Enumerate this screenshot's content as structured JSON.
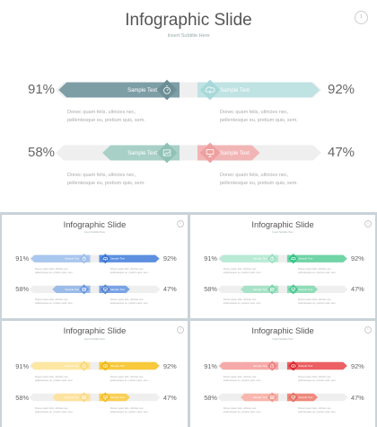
{
  "slides": [
    {
      "title": "Infographic Slide",
      "subtitle": "Insert Subtitle Here",
      "page_number": "1",
      "colors": {
        "left_top": "#7e9ea6",
        "right_top": "#bfe2e3",
        "left_bottom": "#a8d0c6",
        "right_bottom": "#f2b5b5",
        "diamond_left_top": "#6d8e96",
        "diamond_right_top": "#a7d8da",
        "diamond_left_bottom": "#8fc2b5",
        "diamond_right_bottom": "#ee9f9f",
        "track": "#efefef"
      },
      "rows": [
        {
          "left_pct": "91%",
          "right_pct": "92%",
          "left_label": "Sample Text",
          "right_label": "Sample Text",
          "left_icon": "timer-icon",
          "right_icon": "cloud-icon",
          "left_value": 91,
          "right_value": 92
        },
        {
          "left_pct": "58%",
          "right_pct": "47%",
          "left_label": "Sample Text",
          "right_label": "Sample Text",
          "left_icon": "image-icon",
          "right_icon": "presentation-icon",
          "left_value": 58,
          "right_value": 47
        }
      ],
      "descriptions": [
        "Donec quam felis, ultricies nec,\npellentesque eu, pretium quis, sem.",
        "Donec quam felis, ultricies nec,\npellentesque eu, pretium quis, sem.",
        "Donec quam felis, ultricies nec,\npellentesque eu, pretium quis, sem.",
        "Donec quam felis, ultricies nec,\npellentesque eu, pretium quis, sem."
      ]
    },
    {
      "title": "Infographic Slide",
      "subtitle": "Insert Subtitle Here",
      "page_number": "1",
      "colors": {
        "left_top": "#a9c7ee",
        "right_top": "#5c8fe0",
        "left_bottom": "#9bbbe8",
        "right_bottom": "#7aa3e6",
        "diamond_left_top": "#9dbde9",
        "diamond_right_top": "#3f78d6",
        "diamond_left_bottom": "#6f9ade",
        "diamond_right_bottom": "#5b86cf",
        "track": "#efefef"
      },
      "rows": [
        {
          "left_pct": "91%",
          "right_pct": "92%",
          "left_label": "Sample Text",
          "right_label": "Sample Text",
          "left_icon": "timer-icon",
          "right_icon": "cloud-icon",
          "left_value": 91,
          "right_value": 92
        },
        {
          "left_pct": "58%",
          "right_pct": "47%",
          "left_label": "Sample Text",
          "right_label": "Sample Text",
          "left_icon": "image-icon",
          "right_icon": "presentation-icon",
          "left_value": 58,
          "right_value": 47
        }
      ],
      "descriptions": [
        "Donec quam felis, ultricies nec,\npellentesque eu, pretium quis, sem.",
        "Donec quam felis, ultricies nec,\npellentesque eu, pretium quis, sem.",
        "Donec quam felis, ultricies nec,\npellentesque eu, pretium quis, sem.",
        "Donec quam felis, ultricies nec,\npellentesque eu, pretium quis, sem."
      ]
    },
    {
      "title": "Infographic Slide",
      "subtitle": "Insert Subtitle Here",
      "page_number": "1",
      "colors": {
        "left_top": "#b9ead5",
        "right_top": "#6fd4a6",
        "left_bottom": "#a8e2c8",
        "right_bottom": "#8fdcb8",
        "diamond_left_top": "#9ee0c2",
        "diamond_right_top": "#35c486",
        "diamond_left_bottom": "#7fd6ae",
        "diamond_right_bottom": "#4fc793",
        "track": "#efefef"
      },
      "rows": [
        {
          "left_pct": "91%",
          "right_pct": "92%",
          "left_label": "Sample Text",
          "right_label": "Sample Text",
          "left_icon": "timer-icon",
          "right_icon": "cloud-icon",
          "left_value": 91,
          "right_value": 92
        },
        {
          "left_pct": "58%",
          "right_pct": "47%",
          "left_label": "Sample Text",
          "right_label": "Sample Text",
          "left_icon": "image-icon",
          "right_icon": "presentation-icon",
          "left_value": 58,
          "right_value": 47
        }
      ],
      "descriptions": [
        "Donec quam felis, ultricies nec,\npellentesque eu, pretium quis, sem.",
        "Donec quam felis, ultricies nec,\npellentesque eu, pretium quis, sem.",
        "Donec quam felis, ultricies nec,\npellentesque eu, pretium quis, sem.",
        "Donec quam felis, ultricies nec,\npellentesque eu, pretium quis, sem."
      ]
    },
    {
      "title": "Infographic Slide",
      "subtitle": "Insert Subtitle Here",
      "page_number": "1",
      "colors": {
        "left_top": "#fde7a3",
        "right_top": "#f7c93b",
        "left_bottom": "#fde3a0",
        "right_bottom": "#f9cf55",
        "diamond_left_top": "#f9d979",
        "diamond_right_top": "#f0b917",
        "diamond_left_bottom": "#fbd98a",
        "diamond_right_bottom": "#f3bd2d",
        "track": "#efefef"
      },
      "rows": [
        {
          "left_pct": "91%",
          "right_pct": "92%",
          "left_label": "Sample Text",
          "right_label": "Sample Text",
          "left_icon": "timer-icon",
          "right_icon": "cloud-icon",
          "left_value": 91,
          "right_value": 92
        },
        {
          "left_pct": "58%",
          "right_pct": "47%",
          "left_label": "Sample Text",
          "right_label": "Sample Text",
          "left_icon": "image-icon",
          "right_icon": "presentation-icon",
          "left_value": 58,
          "right_value": 47
        }
      ],
      "descriptions": [
        "Donec quam felis, ultricies nec,\npellentesque eu, pretium quis, sem.",
        "Donec quam felis, ultricies nec,\npellentesque eu, pretium quis, sem.",
        "Donec quam felis, ultricies nec,\npellentesque eu, pretium quis, sem.",
        "Donec quam felis, ultricies nec,\npellentesque eu, pretium quis, sem."
      ]
    },
    {
      "title": "Infographic Slide",
      "subtitle": "Insert Subtitle Here",
      "page_number": "1",
      "colors": {
        "left_top": "#f6a9a9",
        "right_top": "#ec5f62",
        "left_bottom": "#f7b7ae",
        "right_bottom": "#ef8a7d",
        "diamond_left_top": "#f07f7f",
        "diamond_right_top": "#d92b31",
        "diamond_left_bottom": "#f29a8f",
        "diamond_right_bottom": "#e66f63",
        "track": "#efefef"
      },
      "rows": [
        {
          "left_pct": "91%",
          "right_pct": "92%",
          "left_label": "Sample Text",
          "right_label": "Sample Text",
          "left_icon": "timer-icon",
          "right_icon": "cloud-icon",
          "left_value": 91,
          "right_value": 92
        },
        {
          "left_pct": "58%",
          "right_pct": "47%",
          "left_label": "Sample Text",
          "right_label": "Sample Text",
          "left_icon": "image-icon",
          "right_icon": "presentation-icon",
          "left_value": 58,
          "right_value": 47
        }
      ],
      "descriptions": [
        "Donec quam felis, ultricies nec,\npellentesque eu, pretium quis, sem.",
        "Donec quam felis, ultricies nec,\npellentesque eu, pretium quis, sem.",
        "Donec quam felis, ultricies nec,\npellentesque eu, pretium quis, sem.",
        "Donec quam felis, ultricies nec,\npellentesque eu, pretium quis, sem."
      ]
    }
  ]
}
